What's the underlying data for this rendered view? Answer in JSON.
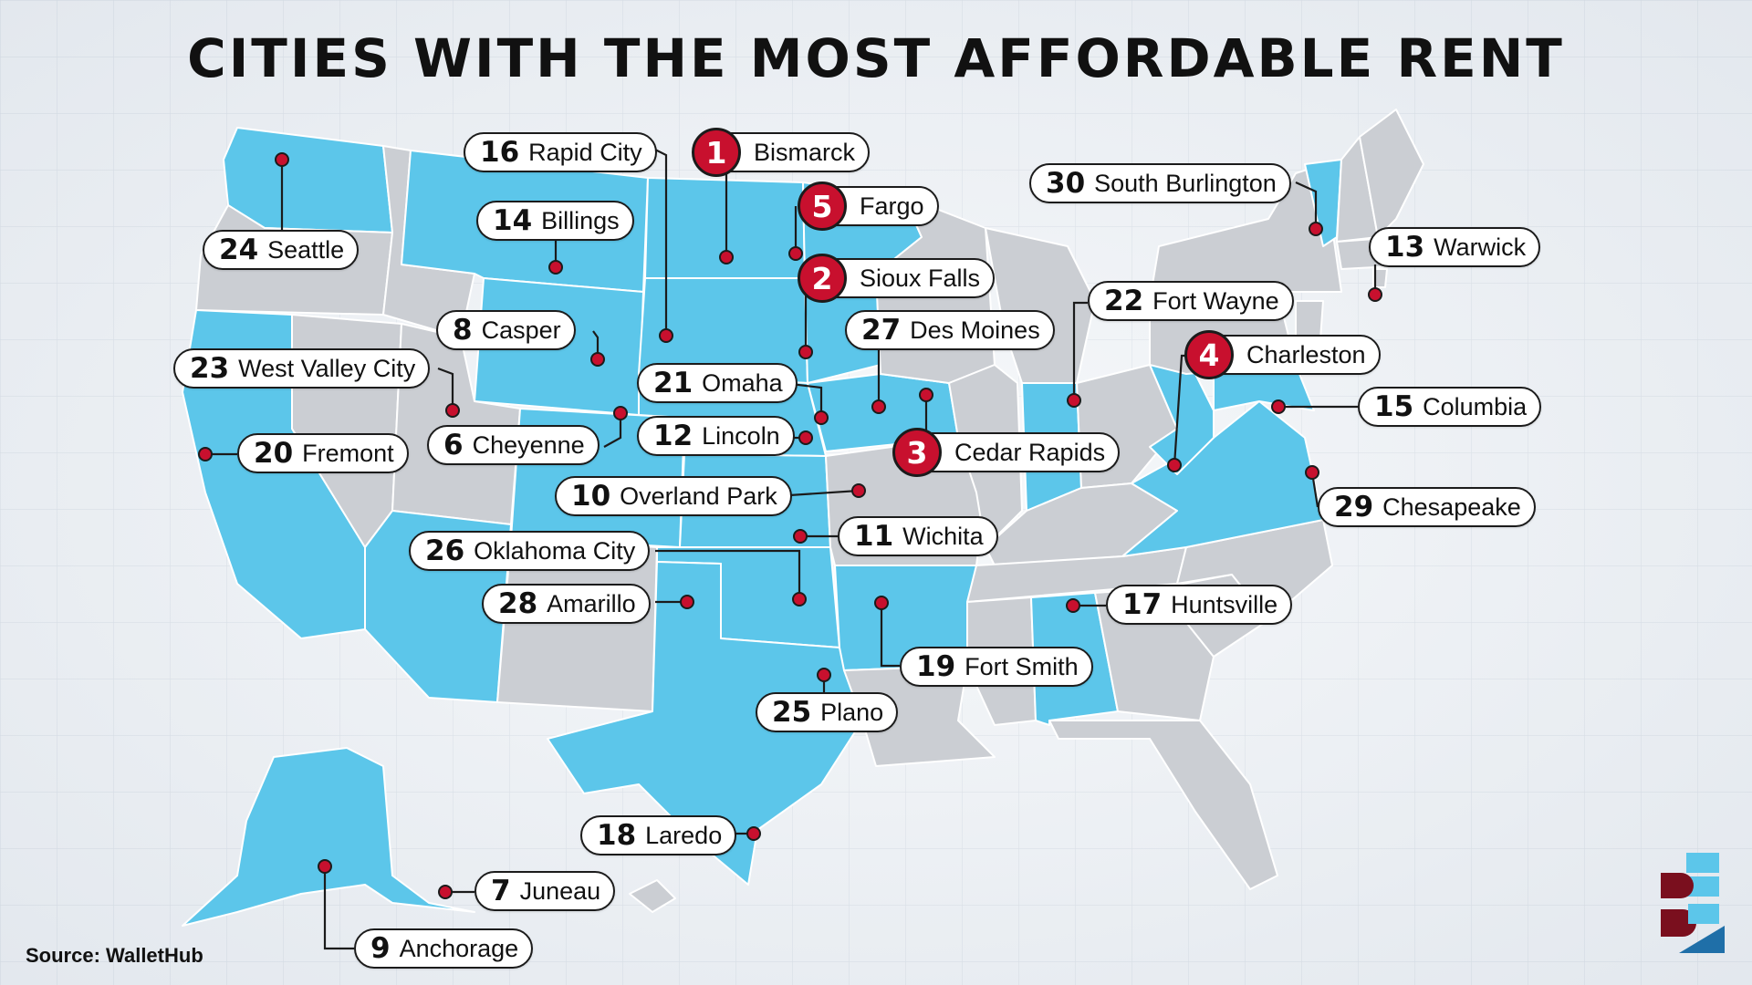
{
  "title": "CITIES WITH THE MOST AFFORDABLE RENT",
  "source": "Source: WalletHub",
  "colors": {
    "highlighted_state": "#5cc6ea",
    "other_state": "#cbced3",
    "marker": "#c8102e",
    "leader_line": "#1b1b1b",
    "background": "#eef2f6"
  },
  "logo": "wallethub-logo",
  "cities": [
    {
      "rank": "1",
      "name": "Bismarck",
      "top5": true
    },
    {
      "rank": "2",
      "name": "Sioux Falls",
      "top5": true
    },
    {
      "rank": "3",
      "name": "Cedar Rapids",
      "top5": true
    },
    {
      "rank": "4",
      "name": "Charleston",
      "top5": true
    },
    {
      "rank": "5",
      "name": "Fargo",
      "top5": true
    },
    {
      "rank": "6",
      "name": "Cheyenne",
      "top5": false
    },
    {
      "rank": "7",
      "name": "Juneau",
      "top5": false
    },
    {
      "rank": "8",
      "name": "Casper",
      "top5": false
    },
    {
      "rank": "9",
      "name": "Anchorage",
      "top5": false
    },
    {
      "rank": "10",
      "name": "Overland Park",
      "top5": false
    },
    {
      "rank": "11",
      "name": "Wichita",
      "top5": false
    },
    {
      "rank": "12",
      "name": "Lincoln",
      "top5": false
    },
    {
      "rank": "13",
      "name": "Warwick",
      "top5": false
    },
    {
      "rank": "14",
      "name": "Billings",
      "top5": false
    },
    {
      "rank": "15",
      "name": "Columbia",
      "top5": false
    },
    {
      "rank": "16",
      "name": "Rapid City",
      "top5": false
    },
    {
      "rank": "17",
      "name": "Huntsville",
      "top5": false
    },
    {
      "rank": "18",
      "name": "Laredo",
      "top5": false
    },
    {
      "rank": "19",
      "name": "Fort Smith",
      "top5": false
    },
    {
      "rank": "20",
      "name": "Fremont",
      "top5": false
    },
    {
      "rank": "21",
      "name": "Omaha",
      "top5": false
    },
    {
      "rank": "22",
      "name": "Fort Wayne",
      "top5": false
    },
    {
      "rank": "23",
      "name": "West Valley City",
      "top5": false
    },
    {
      "rank": "24",
      "name": "Seattle",
      "top5": false
    },
    {
      "rank": "25",
      "name": "Plano",
      "top5": false
    },
    {
      "rank": "26",
      "name": "Oklahoma City",
      "top5": false
    },
    {
      "rank": "27",
      "name": "Des Moines",
      "top5": false
    },
    {
      "rank": "28",
      "name": "Amarillo",
      "top5": false
    },
    {
      "rank": "29",
      "name": "Chesapeake",
      "top5": false
    },
    {
      "rank": "30",
      "name": "South Burlington",
      "top5": false
    }
  ]
}
